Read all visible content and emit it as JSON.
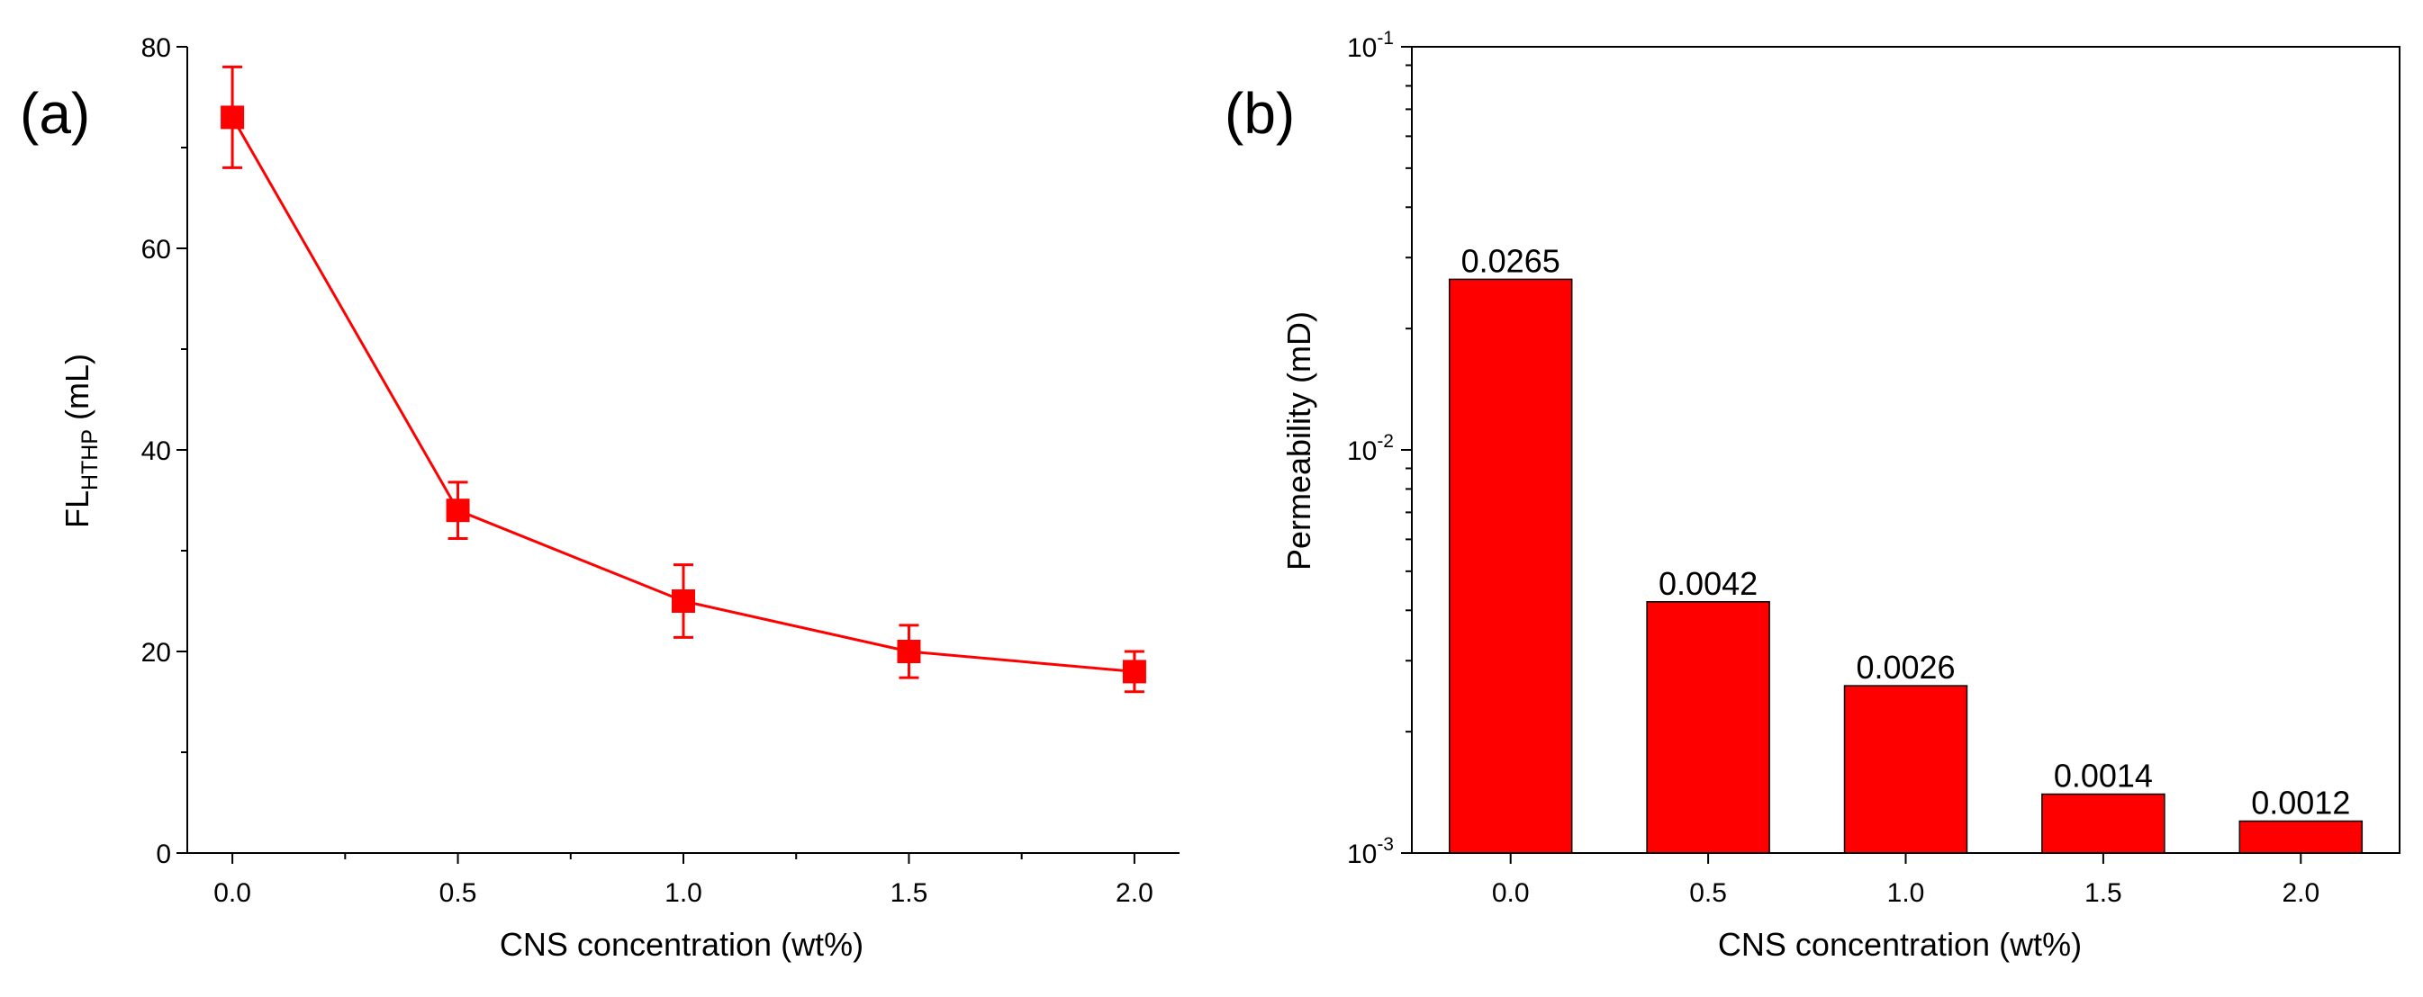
{
  "chart_data": [
    {
      "panel_label": "(a)",
      "type": "line",
      "xlabel": "CNS concentration (wt%)",
      "ylabel_main": "FL",
      "ylabel_sub": "HTHP",
      "ylabel_unit": " (mL)",
      "x": [
        0.0,
        0.5,
        1.0,
        1.5,
        2.0
      ],
      "y": [
        73,
        34,
        25,
        20,
        18
      ],
      "y_err": [
        5,
        2.8,
        3.6,
        2.6,
        2
      ],
      "xlim": [
        -0.1,
        2.1
      ],
      "ylim": [
        0,
        80
      ],
      "x_ticks": [
        0.0,
        0.5,
        1.0,
        1.5,
        2.0
      ],
      "x_tick_labels": [
        "0.0",
        "0.5",
        "1.0",
        "1.5",
        "2.0"
      ],
      "y_ticks": [
        0,
        20,
        40,
        60,
        80
      ],
      "y_tick_labels": [
        "0",
        "20",
        "40",
        "60",
        "80"
      ],
      "marker": "square",
      "color": "#ff0000"
    },
    {
      "panel_label": "(b)",
      "type": "bar",
      "yscale": "log",
      "xlabel": "CNS concentration (wt%)",
      "ylabel": "Permeability (mD)",
      "categories": [
        "0.0",
        "0.5",
        "1.0",
        "1.5",
        "2.0"
      ],
      "values": [
        0.0265,
        0.0042,
        0.0026,
        0.0014,
        0.0012
      ],
      "data_labels": [
        "0.0265",
        "0.0042",
        "0.0026",
        "0.0014",
        "0.0012"
      ],
      "ylim": [
        0.001,
        0.1
      ],
      "y_tick_values": [
        0.001,
        0.01,
        0.1
      ],
      "y_tick_bases": [
        "10",
        "10",
        "10"
      ],
      "y_tick_exps": [
        "-3",
        "-2",
        "-1"
      ],
      "color": "#ff0000"
    }
  ]
}
